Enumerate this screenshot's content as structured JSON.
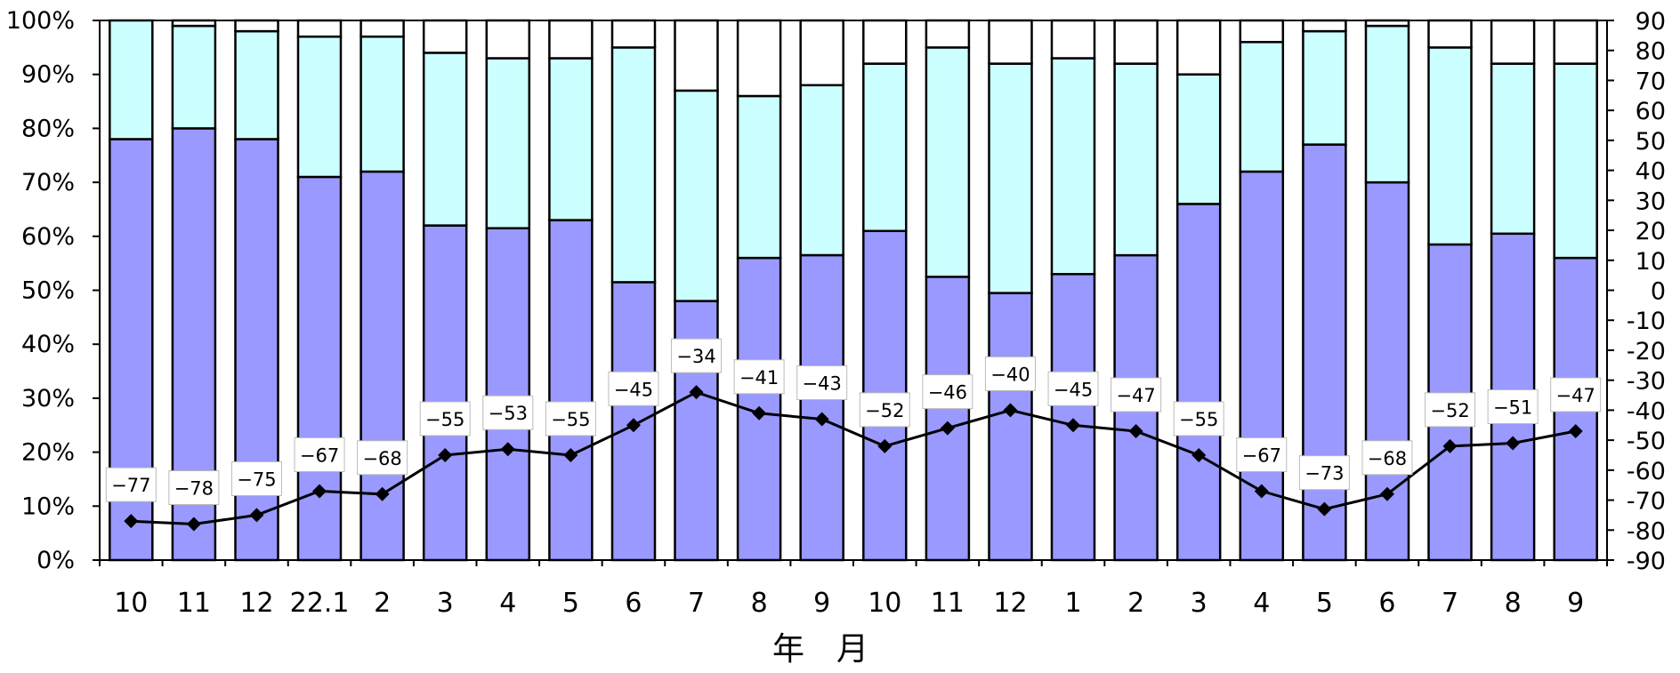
{
  "chart_data": {
    "type": "bar",
    "subtype": "stacked-100-with-line",
    "categories": [
      "10",
      "11",
      "12",
      "22.1",
      "2",
      "3",
      "4",
      "5",
      "6",
      "7",
      "8",
      "9",
      "10",
      "11",
      "12",
      "1",
      "2",
      "3",
      "4",
      "5",
      "6",
      "7",
      "8",
      "9"
    ],
    "xlabel": "年　月",
    "ylabel": "",
    "y_left": {
      "ticks": [
        "0%",
        "10%",
        "20%",
        "30%",
        "40%",
        "50%",
        "60%",
        "70%",
        "80%",
        "90%",
        "100%"
      ],
      "ylim": [
        0,
        100
      ],
      "unit": "%"
    },
    "y_right": {
      "ticks": [
        "-90",
        "-80",
        "-70",
        "-60",
        "-50",
        "-40",
        "-30",
        "-20",
        "-10",
        "0",
        "10",
        "20",
        "30",
        "40",
        "50",
        "60",
        "70",
        "80",
        "90"
      ],
      "ylim": [
        -90,
        90
      ]
    },
    "grid": false,
    "legend": "none",
    "series": [
      {
        "color": "#9999ff",
        "values": [
          78,
          80,
          78,
          71,
          72,
          62,
          61.5,
          63,
          51.5,
          48,
          56,
          56.5,
          61,
          52.5,
          49.5,
          53,
          56.5,
          66,
          72,
          77,
          70,
          58.5,
          60.5,
          56
        ]
      },
      {
        "color": "#ccffff",
        "values": [
          22,
          19,
          20,
          26,
          25,
          32,
          31.5,
          30,
          43.5,
          39,
          30,
          31.5,
          31,
          42.5,
          42.5,
          40,
          35.5,
          24,
          24,
          21,
          29,
          36.5,
          31.5,
          36
        ]
      },
      {
        "color": "#ffffff",
        "values": [
          0,
          1,
          2,
          3,
          3,
          6,
          7,
          7,
          5,
          13,
          14,
          12,
          8,
          5,
          8,
          7,
          8,
          10,
          4,
          2,
          1,
          5,
          8,
          8
        ]
      }
    ],
    "line": {
      "axis": "right",
      "color": "#000000",
      "values": [
        -77,
        -78,
        -75,
        -67,
        -68,
        -55,
        -53,
        -55,
        -45,
        -34,
        -41,
        -43,
        -52,
        -46,
        -40,
        -45,
        -47,
        -55,
        -67,
        -73,
        -68,
        -52,
        -51,
        -47
      ],
      "labels": [
        "−77",
        "−78",
        "−75",
        "−67",
        "−68",
        "−55",
        "−53",
        "−55",
        "−45",
        "−34",
        "−41",
        "−43",
        "−52",
        "−46",
        "−40",
        "−45",
        "−47",
        "−55",
        "−67",
        "−73",
        "−68",
        "−52",
        "−51",
        "−47"
      ]
    }
  }
}
